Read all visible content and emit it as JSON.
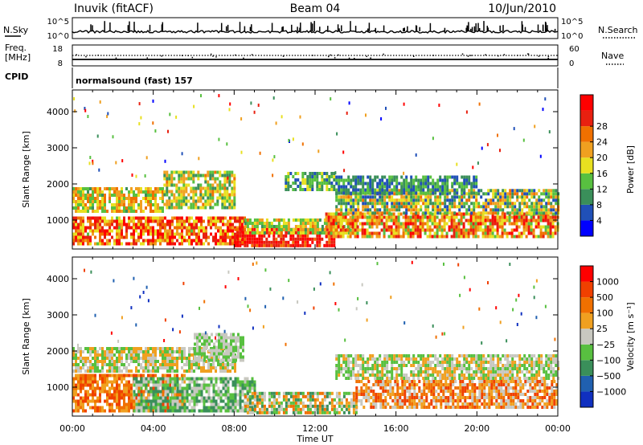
{
  "header": {
    "station": "Inuvik (fitACF)",
    "beam": "Beam 04",
    "date": "10/Jun/2010"
  },
  "side_labels": {
    "nsky": "N.Sky",
    "freq_line1": "Freq.",
    "freq_line2": "[MHz]",
    "cpid": "CPID",
    "nsearch": "N.Search",
    "nave": "Nave"
  },
  "cpid_text": "normalsound (fast) 157",
  "nsky_ticks": [
    "10^5",
    "10^0"
  ],
  "nsearch_ticks": [
    "10^5",
    "10^0"
  ],
  "freq_ticks": [
    "18",
    "8"
  ],
  "nave_ticks": [
    "60",
    "0"
  ],
  "x_axis": {
    "label": "Time UT",
    "ticks": [
      "00:00",
      "04:00",
      "08:00",
      "12:00",
      "16:00",
      "20:00",
      "00:00"
    ]
  },
  "colors": {
    "power_scale": [
      "#0000ff",
      "#2050b8",
      "#3a8f5a",
      "#58c040",
      "#e8e020",
      "#f0a020",
      "#f07000",
      "#e82010",
      "#ff0000"
    ],
    "velocity_scale": [
      "#1030c0",
      "#2060b0",
      "#3a8f5a",
      "#58c040",
      "#c8c8c0",
      "#f0a020",
      "#f07000",
      "#f04000",
      "#ff0000"
    ]
  },
  "chart_data": [
    {
      "type": "heatmap",
      "title": "",
      "xlabel": "Time UT",
      "ylabel": "Slant Range [km]",
      "y_ticks": [
        "1000",
        "2000",
        "3000",
        "4000"
      ],
      "ylim": [
        200,
        4600
      ],
      "xlim": [
        0,
        24
      ],
      "colorbar": {
        "label": "Power [dB]",
        "ticks": [
          "4",
          "8",
          "12",
          "16",
          "20",
          "24",
          "28"
        ],
        "range": [
          0,
          32
        ]
      },
      "bands": [
        {
          "start": 0.0,
          "end": 4.5,
          "rmin": 1200,
          "rmax": 1850,
          "vmin": 10,
          "vmax": 24
        },
        {
          "start": 0.0,
          "end": 8.5,
          "rmin": 300,
          "rmax": 1100,
          "vmin": 14,
          "vmax": 32
        },
        {
          "start": 4.5,
          "end": 8.0,
          "rmin": 1300,
          "rmax": 2300,
          "vmin": 8,
          "vmax": 22
        },
        {
          "start": 8.0,
          "end": 13.0,
          "rmin": 250,
          "rmax": 700,
          "vmin": 24,
          "vmax": 32
        },
        {
          "start": 8.5,
          "end": 14.0,
          "rmin": 600,
          "rmax": 1000,
          "vmin": 10,
          "vmax": 22
        },
        {
          "start": 10.5,
          "end": 13.0,
          "rmin": 1800,
          "rmax": 2300,
          "vmin": 6,
          "vmax": 16
        },
        {
          "start": 12.5,
          "end": 24.0,
          "rmin": 500,
          "rmax": 1200,
          "vmin": 12,
          "vmax": 30
        },
        {
          "start": 13.0,
          "end": 24.0,
          "rmin": 1150,
          "rmax": 1800,
          "vmin": 4,
          "vmax": 24
        },
        {
          "start": 13.0,
          "end": 20.0,
          "rmin": 1700,
          "rmax": 2200,
          "vmin": 4,
          "vmax": 14
        }
      ]
    },
    {
      "type": "heatmap",
      "title": "",
      "xlabel": "Time UT",
      "ylabel": "Slant Range [km]",
      "y_ticks": [
        "1000",
        "2000",
        "3000",
        "4000"
      ],
      "ylim": [
        200,
        4600
      ],
      "xlim": [
        0,
        24
      ],
      "colorbar": {
        "label": "Velocity [m s⁻¹]",
        "ticks": [
          "1000",
          "500",
          "100",
          "25",
          "−25",
          "−100",
          "−500",
          "−1000"
        ]
      },
      "bands": [
        {
          "start": 0.0,
          "end": 8.0,
          "rmin": 1400,
          "rmax": 2100,
          "vmin": 3,
          "vmax": 5
        },
        {
          "start": 0.0,
          "end": 5.5,
          "rmin": 300,
          "rmax": 1300,
          "vmin": 5,
          "vmax": 7
        },
        {
          "start": 3.0,
          "end": 9.0,
          "rmin": 300,
          "rmax": 1200,
          "vmin": 2,
          "vmax": 4
        },
        {
          "start": 6.0,
          "end": 8.5,
          "rmin": 1700,
          "rmax": 2450,
          "vmin": 3,
          "vmax": 4
        },
        {
          "start": 8.5,
          "end": 14.0,
          "rmin": 250,
          "rmax": 800,
          "vmin": 2,
          "vmax": 6
        },
        {
          "start": 13.0,
          "end": 24.0,
          "rmin": 1200,
          "rmax": 1900,
          "vmin": 3,
          "vmax": 5
        },
        {
          "start": 14.0,
          "end": 24.0,
          "rmin": 400,
          "rmax": 1200,
          "vmin": 4,
          "vmax": 7
        }
      ]
    }
  ]
}
